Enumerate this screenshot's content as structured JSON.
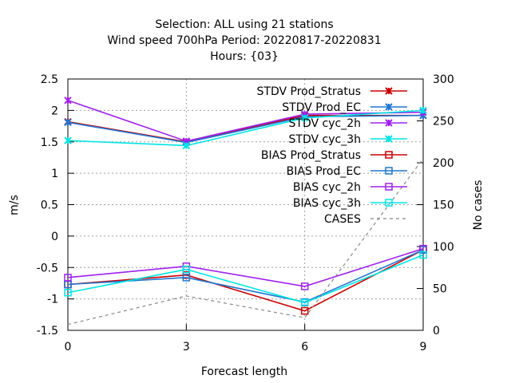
{
  "chart_data": {
    "type": "line",
    "title_lines": [
      "Selection: ALL using    21 stations",
      "Wind speed 700hPa   Period: 20220817-20220831",
      "Hours: {03}"
    ],
    "xlabel": "Forecast length",
    "ylabel": "m/s",
    "y2label": "No cases",
    "x": [
      0,
      3,
      6,
      9
    ],
    "xlim": [
      0,
      9
    ],
    "ylim": [
      -1.5,
      2.5
    ],
    "y2lim": [
      0,
      300
    ],
    "xticks": [
      "0",
      "3",
      "6",
      "9"
    ],
    "yticks": [
      "-1.5",
      "-1",
      "-0.5",
      "0",
      "0.5",
      "1",
      "1.5",
      "2",
      "2.5"
    ],
    "y2ticks": [
      "0",
      "50",
      "100",
      "150",
      "200",
      "250",
      "300"
    ],
    "grid": true,
    "legend_position": "top-right",
    "series": [
      {
        "name": "STDV Prod_Stratus",
        "color": "#cc0000",
        "marker": "x",
        "values": [
          1.82,
          1.5,
          1.92,
          1.92
        ]
      },
      {
        "name": "STDV Prod_EC",
        "color": "#1f77d4",
        "marker": "x",
        "values": [
          1.81,
          1.49,
          1.9,
          1.92
        ]
      },
      {
        "name": "STDV cyc_2h",
        "color": "#a020f0",
        "marker": "x",
        "values": [
          2.16,
          1.51,
          1.94,
          1.97
        ]
      },
      {
        "name": "STDV cyc_3h",
        "color": "#00e5e5",
        "marker": "x",
        "values": [
          1.52,
          1.44,
          1.88,
          2.0
        ]
      },
      {
        "name": "BIAS Prod_Stratus",
        "color": "#cc0000",
        "marker": "square",
        "values": [
          -0.77,
          -0.62,
          -1.19,
          -0.22
        ]
      },
      {
        "name": "BIAS Prod_EC",
        "color": "#1f77d4",
        "marker": "square",
        "values": [
          -0.77,
          -0.66,
          -1.05,
          -0.22
        ]
      },
      {
        "name": "BIAS cyc_2h",
        "color": "#a020f0",
        "marker": "square",
        "values": [
          -0.66,
          -0.48,
          -0.8,
          -0.2
        ]
      },
      {
        "name": "BIAS cyc_3h",
        "color": "#00e5e5",
        "marker": "square",
        "values": [
          -0.9,
          -0.53,
          -1.06,
          -0.3
        ]
      },
      {
        "name": "CASES",
        "color": "#888888",
        "marker": "none",
        "dashed": true,
        "axis": "y2",
        "values": [
          7,
          41,
          15,
          205
        ]
      }
    ]
  }
}
